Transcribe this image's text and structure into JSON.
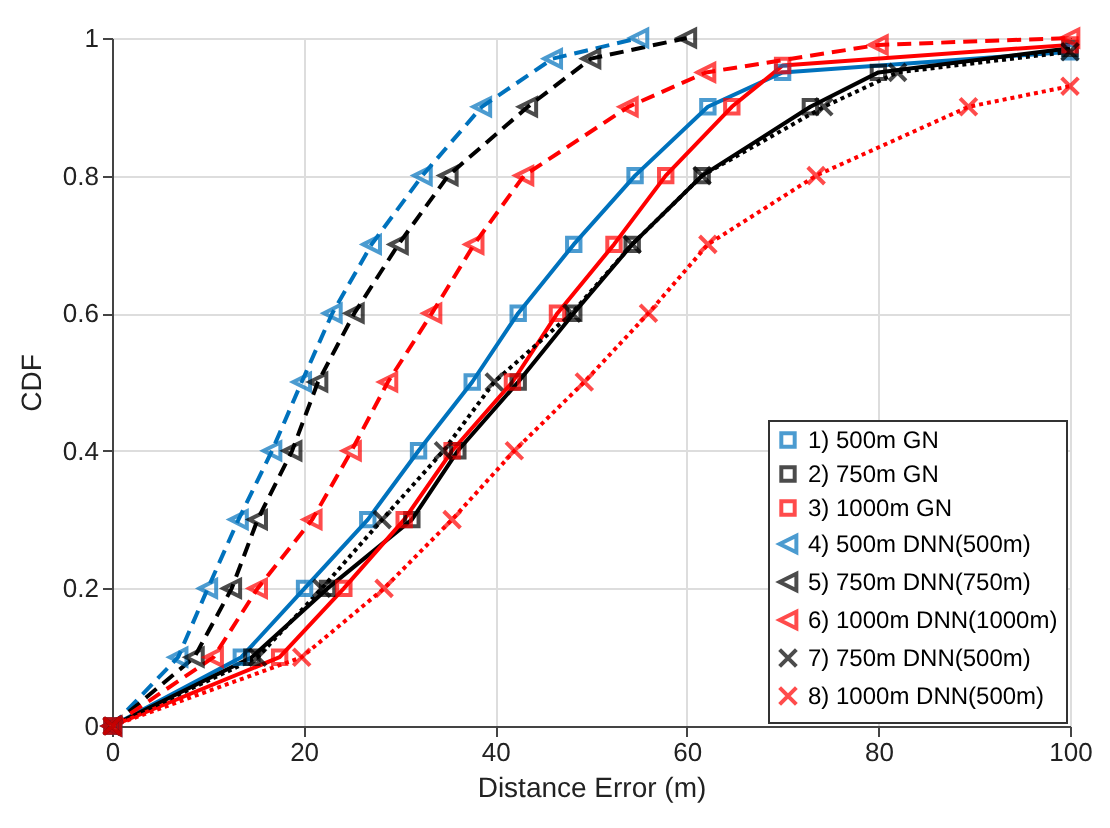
{
  "chart_data": {
    "type": "line",
    "xlabel": "Distance Error (m)",
    "ylabel": "CDF",
    "xlim": [
      0,
      100
    ],
    "ylim": [
      0,
      1
    ],
    "xticks": [
      0,
      20,
      40,
      60,
      80,
      100
    ],
    "yticks": [
      {
        "value": 0,
        "label": "0"
      },
      0.2,
      0.4,
      0.6,
      0.8,
      {
        "value": 1,
        "label": "1"
      }
    ],
    "grid": true,
    "legend": "bottom right",
    "series": [
      {
        "name": "1) 500m GN",
        "color": "#0072bd",
        "marker": "square",
        "line_style": "solid",
        "x": [
          0,
          13.5,
          20.1,
          26.7,
          32,
          37.6,
          42.4,
          48.2,
          54.6,
          62.2,
          70,
          100
        ],
        "values": [
          0,
          0.1,
          0.2,
          0.3,
          0.4,
          0.5,
          0.6,
          0.7,
          0.8,
          0.9,
          0.95,
          0.98
        ]
      },
      {
        "name": "2) 750m GN",
        "color": "#000000",
        "marker": "square",
        "line_style": "solid",
        "x": [
          0,
          14.6,
          22.5,
          31.3,
          36.1,
          42.4,
          48.2,
          54.3,
          61.6,
          72.9,
          80,
          100
        ],
        "values": [
          0,
          0.1,
          0.2,
          0.3,
          0.4,
          0.5,
          0.6,
          0.7,
          0.8,
          0.9,
          0.95,
          0.985
        ]
      },
      {
        "name": "3) 1000m GN",
        "color": "#ff0000",
        "marker": "square",
        "line_style": "solid",
        "x": [
          0,
          17.5,
          24.2,
          30.5,
          35.5,
          41.8,
          46.5,
          52.4,
          57.8,
          64.7,
          70,
          100
        ],
        "values": [
          0,
          0.1,
          0.2,
          0.3,
          0.4,
          0.5,
          0.6,
          0.7,
          0.8,
          0.9,
          0.96,
          0.99
        ]
      },
      {
        "name": "4) 500m DNN(500m)",
        "color": "#0072bd",
        "marker": "triangle",
        "line_style": "dashed",
        "x": [
          0,
          6.9,
          10,
          13.2,
          16.7,
          19.8,
          23,
          27.1,
          32.4,
          38.6,
          46,
          55
        ],
        "values": [
          0,
          0.1,
          0.2,
          0.3,
          0.4,
          0.5,
          0.6,
          0.7,
          0.8,
          0.9,
          0.97,
          1
        ]
      },
      {
        "name": "5) 750m DNN(750m)",
        "color": "#000000",
        "marker": "triangle",
        "line_style": "dashed",
        "x": [
          0,
          8.6,
          12.5,
          15.2,
          18.8,
          21.5,
          25.3,
          29.9,
          35.1,
          43.4,
          50,
          60
        ],
        "values": [
          0,
          0.1,
          0.2,
          0.3,
          0.4,
          0.5,
          0.6,
          0.7,
          0.8,
          0.9,
          0.97,
          1
        ]
      },
      {
        "name": "6) 1000m DNN(1000m)",
        "color": "#ff0000",
        "marker": "triangle",
        "line_style": "dashed",
        "x": [
          0,
          10.6,
          15.2,
          20.9,
          25,
          28.8,
          33.4,
          37.8,
          43,
          53.9,
          62,
          80,
          100
        ],
        "values": [
          0,
          0.1,
          0.2,
          0.3,
          0.4,
          0.5,
          0.6,
          0.7,
          0.8,
          0.9,
          0.95,
          0.99,
          1
        ]
      },
      {
        "name": "7) 750m DNN(500m)",
        "color": "#000000",
        "marker": "cross",
        "line_style": "dotted",
        "x": [
          0,
          15.2,
          21.9,
          28.2,
          34.6,
          39.9,
          48,
          54.3,
          61.6,
          74.3,
          82,
          100
        ],
        "values": [
          0,
          0.1,
          0.2,
          0.3,
          0.4,
          0.5,
          0.6,
          0.7,
          0.8,
          0.9,
          0.95,
          0.98
        ]
      },
      {
        "name": "8) 1000m DNN(500m)",
        "color": "#ff0000",
        "marker": "cross",
        "line_style": "dotted",
        "x": [
          0,
          19.8,
          28.4,
          35.5,
          42,
          49.3,
          56,
          62.2,
          73.5,
          89.4,
          100
        ],
        "values": [
          0,
          0.1,
          0.2,
          0.3,
          0.4,
          0.5,
          0.6,
          0.7,
          0.8,
          0.9,
          0.93
        ]
      }
    ]
  }
}
